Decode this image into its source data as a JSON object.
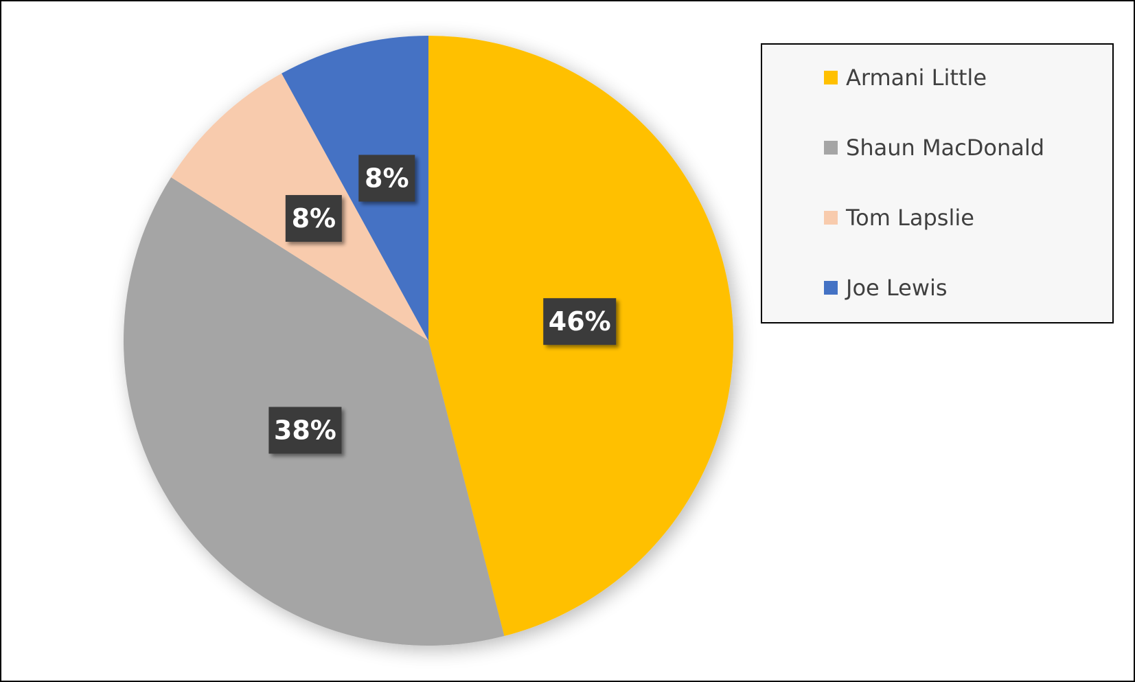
{
  "chart_data": {
    "type": "pie",
    "title": "",
    "legend_position": "right",
    "series": [
      {
        "categories": [
          "Armani Little",
          "Shaun MacDonald",
          "Tom Lapslie",
          "Joe Lewis"
        ],
        "values": [
          46,
          38,
          8,
          8
        ],
        "labels": [
          "46%",
          "38%",
          "8%",
          "8%"
        ],
        "colors": [
          "#FFC000",
          "#A5A5A5",
          "#F8CBAD",
          "#4472C4"
        ]
      }
    ]
  }
}
